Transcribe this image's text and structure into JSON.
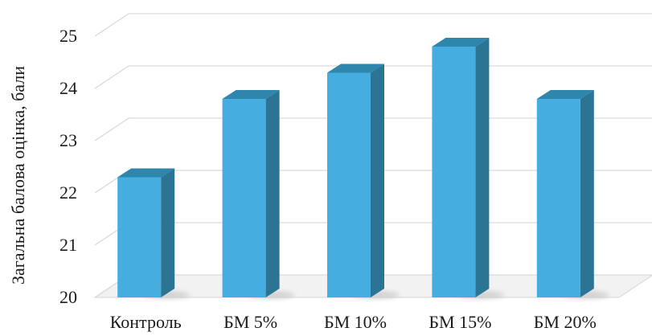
{
  "chart_data": {
    "type": "bar",
    "title": "",
    "xlabel": "",
    "ylabel": "Загальна балова оцінка, бали",
    "categories": [
      "Контроль",
      "БМ 5%",
      "БМ 10%",
      "БМ 15%",
      "БМ 20%"
    ],
    "values": [
      22.3,
      23.8,
      24.3,
      24.8,
      23.8
    ],
    "ylim": [
      20,
      25
    ],
    "yticks": [
      "20",
      "21",
      "22",
      "23",
      "24",
      "25"
    ],
    "grid": true,
    "legend": "none",
    "style": "3d-column"
  },
  "colors": {
    "bar_front": "#45ade0",
    "bar_side": "#2b7494",
    "bar_top": "#2f86ad",
    "grid": "#d9d9d9",
    "floor": "#d4d4d4"
  }
}
